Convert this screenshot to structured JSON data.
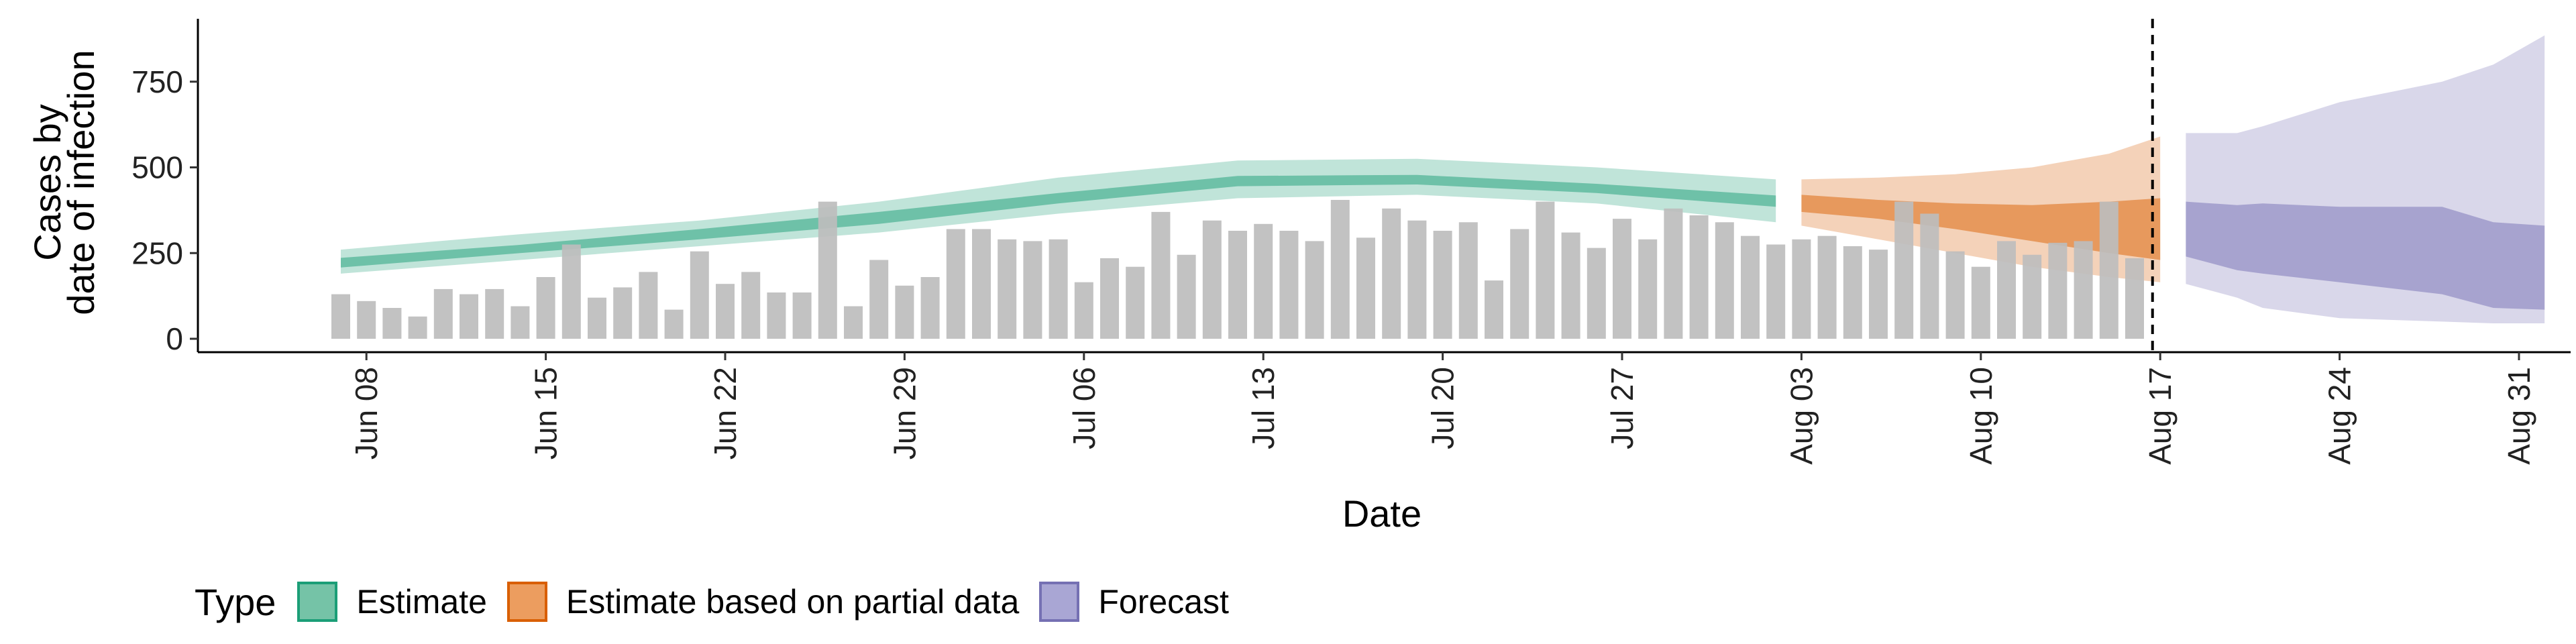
{
  "chart_data": {
    "type": "bar",
    "xlabel": "Date",
    "ylabel_lines": [
      "Cases by",
      "date of infection"
    ],
    "ylim": [
      0,
      930
    ],
    "yticks": [
      0,
      250,
      500,
      750
    ],
    "x_start": "Jun 07",
    "xtick_labels": [
      "Jun 08",
      "Jun 15",
      "Jun 22",
      "Jun 29",
      "Jul 06",
      "Jul 13",
      "Jul 20",
      "Jul 27",
      "Aug 03",
      "Aug 10",
      "Aug 17",
      "Aug 24",
      "Aug 31"
    ],
    "xtick_day_index": [
      1,
      8,
      15,
      22,
      29,
      36,
      43,
      50,
      57,
      64,
      71,
      78,
      85
    ],
    "vline_day_index": 70.7,
    "bar_color": "#bdbdbd",
    "reported_cases": {
      "name": "Reported cases",
      "values": [
        130,
        110,
        90,
        65,
        145,
        130,
        145,
        95,
        180,
        275,
        120,
        150,
        195,
        85,
        255,
        160,
        195,
        135,
        135,
        400,
        95,
        230,
        155,
        180,
        320,
        320,
        290,
        285,
        290,
        165,
        235,
        210,
        370,
        245,
        345,
        315,
        335,
        315,
        285,
        405,
        295,
        380,
        345,
        315,
        340,
        170,
        320,
        400,
        310,
        265,
        350,
        290,
        380,
        360,
        340,
        300,
        275,
        290,
        300,
        270,
        260,
        400,
        365,
        255,
        210,
        285,
        245,
        280,
        285,
        400,
        235
      ]
    },
    "series": [
      {
        "name": "Estimate",
        "color": "#1b9e77",
        "day_index": [
          0,
          7,
          14,
          21,
          28,
          35,
          42,
          49,
          56
        ],
        "median": [
          222,
          262,
          305,
          352,
          410,
          460,
          462,
          438,
          402
        ],
        "inner_low": [
          208,
          250,
          290,
          335,
          395,
          445,
          450,
          425,
          385
        ],
        "inner_high": [
          236,
          274,
          320,
          370,
          425,
          475,
          478,
          452,
          418
        ],
        "outer_low": [
          190,
          230,
          270,
          310,
          365,
          410,
          420,
          395,
          340
        ],
        "outer_high": [
          260,
          305,
          345,
          400,
          470,
          520,
          525,
          500,
          465
        ]
      },
      {
        "name": "Estimate based on partial data",
        "color": "#d95f02",
        "day_index": [
          57,
          60,
          63,
          66,
          69,
          71
        ],
        "median": [
          405,
          390,
          370,
          340,
          320,
          310
        ],
        "inner_low": [
          370,
          350,
          320,
          285,
          250,
          230
        ],
        "inner_high": [
          420,
          405,
          395,
          390,
          400,
          410
        ],
        "outer_low": [
          330,
          290,
          250,
          210,
          180,
          165
        ],
        "outer_high": [
          465,
          470,
          480,
          500,
          540,
          590
        ]
      },
      {
        "name": "Forecast",
        "color": "#7570b3",
        "day_index": [
          72,
          74,
          75,
          78,
          82,
          84,
          86
        ],
        "median": [
          320,
          315,
          315,
          310,
          300,
          260,
          200
        ],
        "inner_low": [
          240,
          200,
          190,
          165,
          130,
          90,
          85
        ],
        "inner_high": [
          400,
          390,
          395,
          385,
          385,
          340,
          330
        ],
        "outer_low": [
          160,
          120,
          90,
          60,
          50,
          45,
          45
        ],
        "outer_high": [
          600,
          600,
          620,
          690,
          750,
          800,
          885
        ]
      }
    ],
    "legend": {
      "title": "Type",
      "position": "bottom-left",
      "items": [
        {
          "label": "Estimate",
          "fill": "#75c3a7",
          "border": "#1b9e77"
        },
        {
          "label": "Estimate based on partial data",
          "fill": "#ec9d5f",
          "border": "#d95f02"
        },
        {
          "label": "Forecast",
          "fill": "#a9a6d4",
          "border": "#7570b3"
        }
      ]
    },
    "grid": false
  }
}
